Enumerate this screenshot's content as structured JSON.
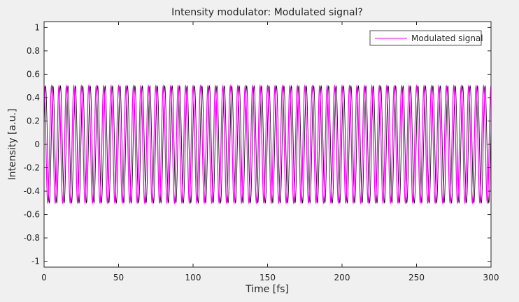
{
  "chart_data": {
    "type": "line",
    "title": "Intensity modulator: Modulated signal?",
    "xlabel": "Time [fs]",
    "ylabel": "Intensity [a.u.]",
    "xlim": [
      0,
      300
    ],
    "ylim": [
      -1.05,
      1.05
    ],
    "xticks": [
      0,
      50,
      100,
      150,
      200,
      250,
      300
    ],
    "yticks": [
      -1,
      -0.8,
      -0.6,
      -0.4,
      -0.2,
      0,
      0.2,
      0.4,
      0.6,
      0.8,
      1
    ],
    "xtick_labels": [
      "0",
      "50",
      "100",
      "150",
      "200",
      "250",
      "300"
    ],
    "ytick_labels": [
      "-1",
      "-0.8",
      "-0.6",
      "-0.4",
      "-0.2",
      "0",
      "0.2",
      "0.4",
      "0.6",
      "0.8",
      "1"
    ],
    "grid": false,
    "legend": {
      "position": "top-right",
      "entries": [
        "Modulated signal"
      ]
    },
    "series": [
      {
        "name": "Modulated signal",
        "color": "#ff00ff",
        "description_model": {
          "amplitude": 0.5,
          "carrier_frequency_per_fs": 0.2,
          "components": [
            {
              "color": "#ff00ff",
              "amplitude": 0.5,
              "frequency_per_fs": 0.2,
              "phase_rad": 1.5708
            },
            {
              "color": "#000000",
              "amplitude": 0.5,
              "frequency_per_fs": 0.2,
              "phase_rad": 0.3
            }
          ]
        }
      }
    ]
  }
}
